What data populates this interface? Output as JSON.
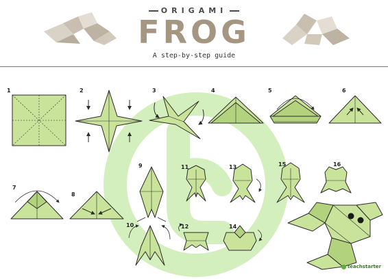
{
  "header": {
    "supertitle": "ORIGAMI",
    "title": "FROG",
    "subtitle": "A step-by-step guide"
  },
  "steps": [
    "1",
    "2",
    "3",
    "4",
    "5",
    "6",
    "7",
    "8",
    "9",
    "10",
    "11",
    "12",
    "13",
    "14",
    "15",
    "16"
  ],
  "brand": "teachstarter",
  "colors": {
    "paper": "#c9e39a",
    "paper_dark": "#b3d27d",
    "outline": "#2b2b2b",
    "title": "#a59682",
    "watermark": "#d4efbe"
  }
}
